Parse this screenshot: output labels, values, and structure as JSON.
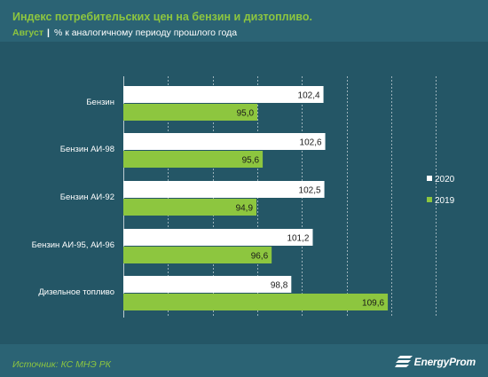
{
  "header": {
    "title": "Индекс потребительских цен на бензин и дизтопливо.",
    "period": "Август",
    "separator": "|",
    "description": "% к аналогичному периоду прошлого года"
  },
  "footer": {
    "source": "Источник: КС МНЭ РК",
    "logo_text": "EnergyProm"
  },
  "colors": {
    "background": "#2b6374",
    "plot_band": "#245666",
    "series_2020": "#ffffff",
    "series_2019": "#8dc63f",
    "accent": "#8dc63f"
  },
  "chart_data": {
    "type": "bar",
    "orientation": "horizontal",
    "categories": [
      "Бензин",
      "Бензин АИ-98",
      "Бензин АИ-92",
      "Бензин АИ-95, АИ-96",
      "Дизельное топливо"
    ],
    "series": [
      {
        "name": "2020",
        "values": [
          102.4,
          102.6,
          102.5,
          101.2,
          98.8
        ],
        "labels": [
          "102,4",
          "102,6",
          "102,5",
          "101,2",
          "98,8"
        ]
      },
      {
        "name": "2019",
        "values": [
          95.0,
          95.6,
          94.9,
          96.6,
          109.6
        ],
        "labels": [
          "95,0",
          "95,6",
          "94,9",
          "96,6",
          "109,6"
        ]
      }
    ],
    "xlim": [
      80,
      115
    ],
    "grid": true,
    "legend": "right"
  }
}
